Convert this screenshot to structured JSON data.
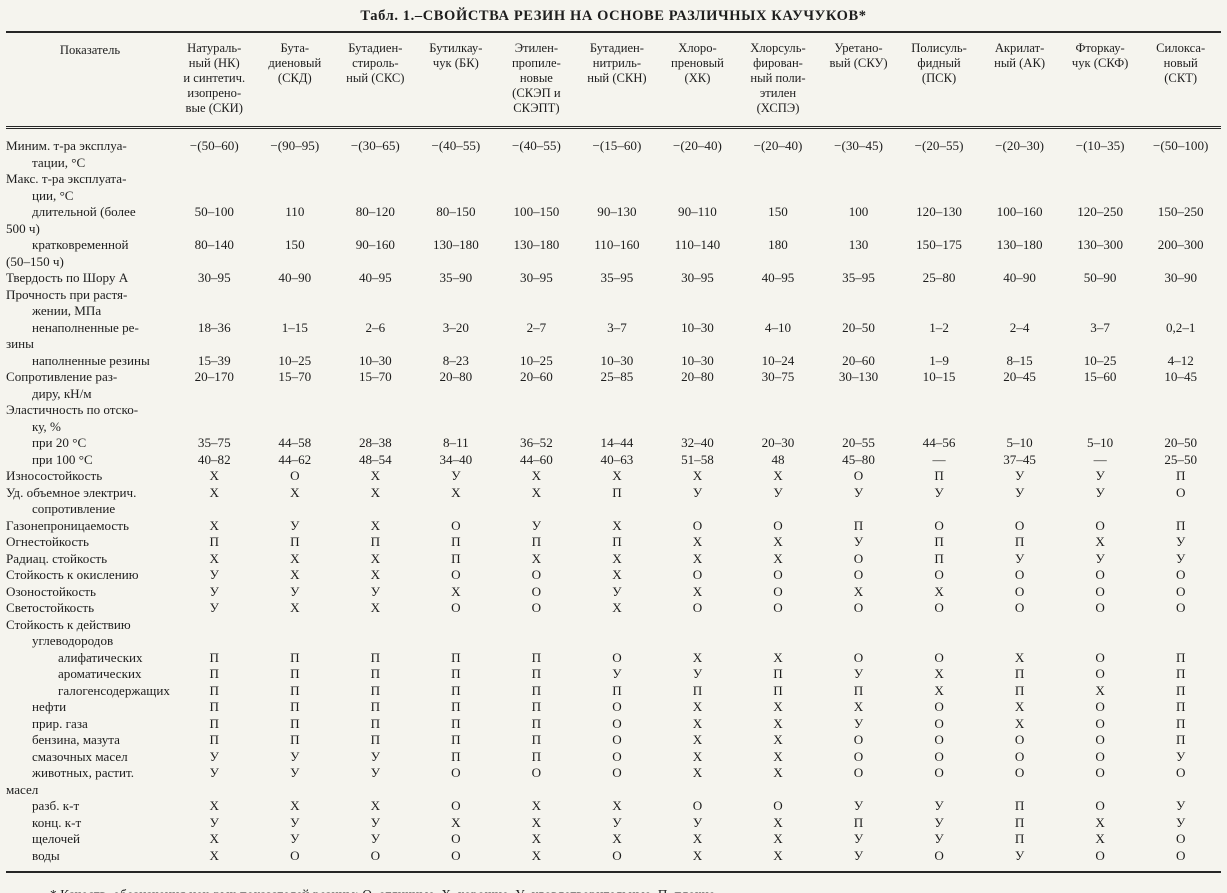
{
  "page": {
    "title": "Табл. 1.–СВОЙСТВА РЕЗИН НА ОСНОВЕ РАЗЛИЧНЫХ КАУЧУКОВ*",
    "footnote": "* Качеств. обозначения нек-рых показателей резины: О–отличные, Х–хорошие, У–удовлетворительные, П–плохие."
  },
  "legend": {
    "О": "отличные",
    "Х": "хорошие",
    "У": "удовлетворительные",
    "П": "плохие"
  },
  "table": {
    "param_header": "Показатель",
    "columns": [
      "Натураль-\nный (НК)\nи синтетич.\nизопрено-\nвые (СКИ)",
      "Бута-\nдиеновый\n(СКД)",
      "Бутадиен-\nстироль-\nный (СКС)",
      "Бутилкау-\nчук (БК)",
      "Этилен-\nпропиле-\nновые\n(СКЭП и\nСКЭПТ)",
      "Бутадиен-\nнитриль-\nный (СКН)",
      "Хлоро-\nпреновый\n(ХК)",
      "Хлорсуль-\nфирован-\nный поли-\nэтилен\n(ХСПЭ)",
      "Уретано-\nвый (СКУ)",
      "Полисуль-\nфидный\n(ПСК)",
      "Акрилат-\nный (АК)",
      "Фторкау-\nчук (СКФ)",
      "Силокса-\nновый\n(СКТ)"
    ],
    "rows": [
      {
        "label": "Миним. т-ра эксплуа-\nтации, °С",
        "indent": 0,
        "values": [
          "−(50–60)",
          "−(90–95)",
          "−(30–65)",
          "−(40–55)",
          "−(40–55)",
          "−(15–60)",
          "−(20–40)",
          "−(20–40)",
          "−(30–45)",
          "−(20–55)",
          "−(20–30)",
          "−(10–35)",
          "−(50–100)"
        ]
      },
      {
        "label": "Макс. т-ра эксплуата-\nции, °С",
        "indent": 0,
        "values": [
          "",
          "",
          "",
          "",
          "",
          "",
          "",
          "",
          "",
          "",
          "",
          "",
          ""
        ]
      },
      {
        "label": "длительной (более\n500 ч)",
        "indent": 1,
        "values": [
          "50–100",
          "110",
          "80–120",
          "80–150",
          "100–150",
          "90–130",
          "90–110",
          "150",
          "100",
          "120–130",
          "100–160",
          "120–250",
          "150–250"
        ]
      },
      {
        "label": "кратковременной\n(50–150 ч)",
        "indent": 1,
        "values": [
          "80–140",
          "150",
          "90–160",
          "130–180",
          "130–180",
          "110–160",
          "110–140",
          "180",
          "130",
          "150–175",
          "130–180",
          "130–300",
          "200–300"
        ]
      },
      {
        "label": "Твердость по Шору А",
        "indent": 0,
        "values": [
          "30–95",
          "40–90",
          "40–95",
          "35–90",
          "30–95",
          "35–95",
          "30–95",
          "40–95",
          "35–95",
          "25–80",
          "40–90",
          "50–90",
          "30–90"
        ]
      },
      {
        "label": "Прочность при растя-\nжении, МПа",
        "indent": 0,
        "values": [
          "",
          "",
          "",
          "",
          "",
          "",
          "",
          "",
          "",
          "",
          "",
          "",
          ""
        ]
      },
      {
        "label": "ненаполненные ре-\nзины",
        "indent": 1,
        "values": [
          "18–36",
          "1–15",
          "2–6",
          "3–20",
          "2–7",
          "3–7",
          "10–30",
          "4–10",
          "20–50",
          "1–2",
          "2–4",
          "3–7",
          "0,2–1"
        ]
      },
      {
        "label": "наполненные резины",
        "indent": 1,
        "values": [
          "15–39",
          "10–25",
          "10–30",
          "8–23",
          "10–25",
          "10–30",
          "10–30",
          "10–24",
          "20–60",
          "1–9",
          "8–15",
          "10–25",
          "4–12"
        ]
      },
      {
        "label": "Сопротивление раз-\nдиру, кН/м",
        "indent": 0,
        "values": [
          "20–170",
          "15–70",
          "15–70",
          "20–80",
          "20–60",
          "25–85",
          "20–80",
          "30–75",
          "30–130",
          "10–15",
          "20–45",
          "15–60",
          "10–45"
        ]
      },
      {
        "label": "Эластичность по отско-\nку, %",
        "indent": 0,
        "values": [
          "",
          "",
          "",
          "",
          "",
          "",
          "",
          "",
          "",
          "",
          "",
          "",
          ""
        ]
      },
      {
        "label": "при 20 °С",
        "indent": 1,
        "values": [
          "35–75",
          "44–58",
          "28–38",
          "8–11",
          "36–52",
          "14–44",
          "32–40",
          "20–30",
          "20–55",
          "44–56",
          "5–10",
          "5–10",
          "20–50"
        ]
      },
      {
        "label": "при 100 °С",
        "indent": 1,
        "values": [
          "40–82",
          "44–62",
          "48–54",
          "34–40",
          "44–60",
          "40–63",
          "51–58",
          "48",
          "45–80",
          "—",
          "37–45",
          "—",
          "25–50"
        ]
      },
      {
        "label": "Износостойкость",
        "indent": 0,
        "values": [
          "Х",
          "О",
          "Х",
          "У",
          "Х",
          "Х",
          "Х",
          "Х",
          "О",
          "П",
          "У",
          "У",
          "П"
        ]
      },
      {
        "label": "Уд. объемное электрич.\nсопротивление",
        "indent": 0,
        "values": [
          "Х",
          "Х",
          "Х",
          "Х",
          "Х",
          "П",
          "У",
          "У",
          "У",
          "У",
          "У",
          "У",
          "О"
        ]
      },
      {
        "label": "Газонепроницаемость",
        "indent": 0,
        "values": [
          "Х",
          "У",
          "Х",
          "О",
          "У",
          "Х",
          "О",
          "О",
          "П",
          "О",
          "О",
          "О",
          "П"
        ]
      },
      {
        "label": "Огнестойкость",
        "indent": 0,
        "values": [
          "П",
          "П",
          "П",
          "П",
          "П",
          "П",
          "Х",
          "Х",
          "У",
          "П",
          "П",
          "Х",
          "У"
        ]
      },
      {
        "label": "Радиац. стойкость",
        "indent": 0,
        "values": [
          "Х",
          "Х",
          "Х",
          "П",
          "Х",
          "Х",
          "Х",
          "Х",
          "О",
          "П",
          "У",
          "У",
          "У"
        ]
      },
      {
        "label": "Стойкость к окислению",
        "indent": 0,
        "values": [
          "У",
          "Х",
          "Х",
          "О",
          "О",
          "Х",
          "О",
          "О",
          "О",
          "О",
          "О",
          "О",
          "О"
        ]
      },
      {
        "label": "Озоностойкость",
        "indent": 0,
        "values": [
          "У",
          "У",
          "У",
          "Х",
          "О",
          "У",
          "Х",
          "О",
          "Х",
          "Х",
          "О",
          "О",
          "О"
        ]
      },
      {
        "label": "Светостойкость",
        "indent": 0,
        "values": [
          "У",
          "Х",
          "Х",
          "О",
          "О",
          "Х",
          "О",
          "О",
          "О",
          "О",
          "О",
          "О",
          "О"
        ]
      },
      {
        "label": "Стойкость к действию",
        "indent": 0,
        "values": [
          "",
          "",
          "",
          "",
          "",
          "",
          "",
          "",
          "",
          "",
          "",
          "",
          ""
        ]
      },
      {
        "label": "углеводородов",
        "indent": 1,
        "values": [
          "",
          "",
          "",
          "",
          "",
          "",
          "",
          "",
          "",
          "",
          "",
          "",
          ""
        ]
      },
      {
        "label": "алифатических",
        "indent": 2,
        "values": [
          "П",
          "П",
          "П",
          "П",
          "П",
          "О",
          "Х",
          "Х",
          "О",
          "О",
          "Х",
          "О",
          "П"
        ]
      },
      {
        "label": "ароматических",
        "indent": 2,
        "values": [
          "П",
          "П",
          "П",
          "П",
          "П",
          "У",
          "У",
          "П",
          "У",
          "Х",
          "П",
          "О",
          "П"
        ]
      },
      {
        "label": "галогенсодержащих",
        "indent": 2,
        "values": [
          "П",
          "П",
          "П",
          "П",
          "П",
          "П",
          "П",
          "П",
          "П",
          "Х",
          "П",
          "Х",
          "П"
        ]
      },
      {
        "label": "нефти",
        "indent": 1,
        "values": [
          "П",
          "П",
          "П",
          "П",
          "П",
          "О",
          "Х",
          "Х",
          "Х",
          "О",
          "Х",
          "О",
          "П"
        ]
      },
      {
        "label": "прир. газа",
        "indent": 1,
        "values": [
          "П",
          "П",
          "П",
          "П",
          "П",
          "О",
          "Х",
          "Х",
          "У",
          "О",
          "Х",
          "О",
          "П"
        ]
      },
      {
        "label": "бензина, мазута",
        "indent": 1,
        "values": [
          "П",
          "П",
          "П",
          "П",
          "П",
          "О",
          "Х",
          "Х",
          "О",
          "О",
          "О",
          "О",
          "П"
        ]
      },
      {
        "label": "смазочных масел",
        "indent": 1,
        "values": [
          "У",
          "У",
          "У",
          "П",
          "П",
          "О",
          "Х",
          "Х",
          "О",
          "О",
          "О",
          "О",
          "У"
        ]
      },
      {
        "label": "животных, растит.\nмасел",
        "indent": 1,
        "values": [
          "У",
          "У",
          "У",
          "О",
          "О",
          "О",
          "Х",
          "Х",
          "О",
          "О",
          "О",
          "О",
          "О"
        ]
      },
      {
        "label": "разб. к-т",
        "indent": 1,
        "values": [
          "Х",
          "Х",
          "Х",
          "О",
          "Х",
          "Х",
          "О",
          "О",
          "У",
          "У",
          "П",
          "О",
          "У"
        ]
      },
      {
        "label": "конц. к-т",
        "indent": 1,
        "values": [
          "У",
          "У",
          "У",
          "Х",
          "Х",
          "У",
          "У",
          "Х",
          "П",
          "У",
          "П",
          "Х",
          "У"
        ]
      },
      {
        "label": "щелочей",
        "indent": 1,
        "values": [
          "Х",
          "У",
          "У",
          "О",
          "Х",
          "Х",
          "Х",
          "Х",
          "У",
          "У",
          "П",
          "Х",
          "О"
        ]
      },
      {
        "label": "воды",
        "indent": 1,
        "values": [
          "Х",
          "О",
          "О",
          "О",
          "Х",
          "О",
          "Х",
          "Х",
          "У",
          "О",
          "У",
          "О",
          "О"
        ]
      }
    ]
  }
}
